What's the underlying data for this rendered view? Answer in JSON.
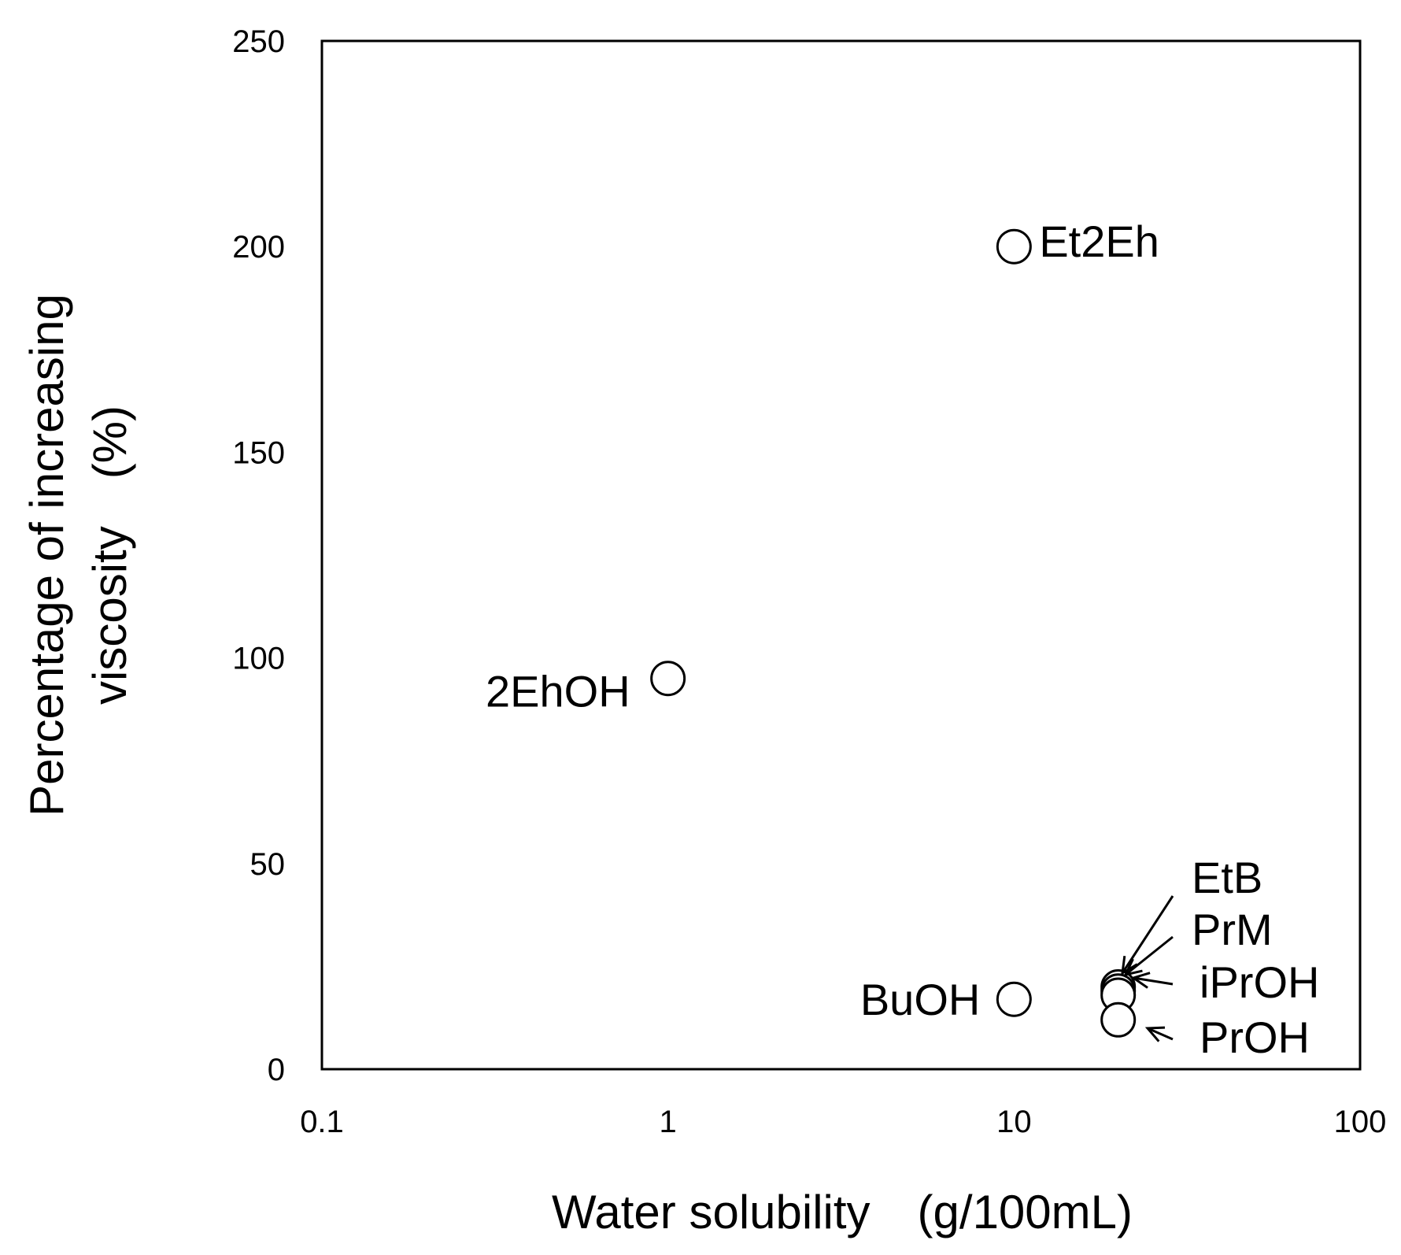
{
  "chart_data": {
    "type": "scatter",
    "title": "",
    "xlabel": "Water solubility　(g/100mL)",
    "ylabel_line1": "Percentage of increasing",
    "ylabel_line2": "viscosity　(%)",
    "x_scale": "log",
    "xlim": [
      0.1,
      100
    ],
    "ylim": [
      0,
      250
    ],
    "x_ticks": [
      "0.1",
      "1",
      "10",
      "100"
    ],
    "y_ticks": [
      "0",
      "50",
      "100",
      "150",
      "200",
      "250"
    ],
    "grid": false,
    "legend": "none",
    "marker": "open-circle",
    "points": [
      {
        "label": "Et2Eh",
        "x": 10,
        "y": 200
      },
      {
        "label": "2EhOH",
        "x": 1,
        "y": 95
      },
      {
        "label": "BuOH",
        "x": 10,
        "y": 17
      },
      {
        "label": "EtB",
        "x": 20,
        "y": 20
      },
      {
        "label": "PrM",
        "x": 20,
        "y": 19
      },
      {
        "label": "iPrOH",
        "x": 20,
        "y": 18
      },
      {
        "label": "PrOH",
        "x": 20,
        "y": 12
      }
    ]
  }
}
